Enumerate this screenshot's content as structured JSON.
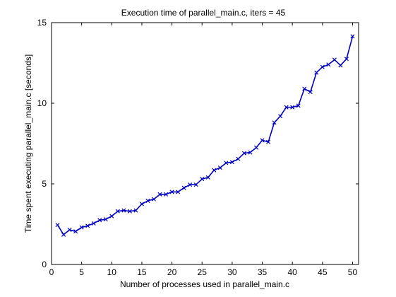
{
  "chart_data": {
    "type": "line",
    "title": "Execution time of parallel_main.c, iters = 45",
    "xlabel": "Number of processes used in parallel_main.c",
    "ylabel": "Time spent executing parallel_main.c [seconds]",
    "xlim": [
      0,
      51
    ],
    "ylim": [
      0,
      15
    ],
    "xticks": [
      0,
      5,
      10,
      15,
      20,
      25,
      30,
      35,
      40,
      45,
      50
    ],
    "yticks": [
      0,
      5,
      10,
      15
    ],
    "grid": false,
    "marker": "x",
    "line_color": "#0000bf",
    "series": [
      {
        "x": [
          1,
          2,
          3,
          4,
          5,
          6,
          7,
          8,
          9,
          10,
          11,
          12,
          13,
          14,
          15,
          16,
          17,
          18,
          19,
          20,
          21,
          22,
          23,
          24,
          25,
          26,
          27,
          28,
          29,
          30,
          31,
          32,
          33,
          34,
          35,
          36,
          37,
          38,
          39,
          40,
          41,
          42,
          43,
          44,
          45,
          46,
          47,
          48,
          49,
          50
        ],
        "values": [
          2.45,
          1.85,
          2.15,
          2.05,
          2.3,
          2.4,
          2.55,
          2.75,
          2.8,
          3.0,
          3.3,
          3.35,
          3.3,
          3.35,
          3.75,
          3.95,
          4.05,
          4.35,
          4.35,
          4.5,
          4.5,
          4.75,
          4.95,
          4.95,
          5.3,
          5.4,
          5.85,
          6.0,
          6.3,
          6.35,
          6.55,
          6.9,
          6.95,
          7.25,
          7.7,
          7.6,
          8.8,
          9.2,
          9.75,
          9.75,
          9.85,
          10.9,
          10.7,
          11.9,
          12.25,
          12.4,
          12.7,
          12.35,
          12.75,
          14.15
        ]
      }
    ]
  }
}
